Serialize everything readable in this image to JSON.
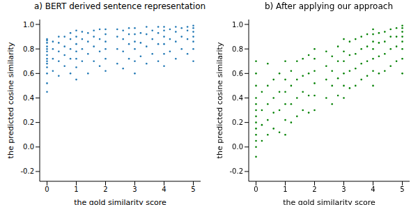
{
  "chart_data": [
    {
      "type": "scatter",
      "title": "a) BERT derived sentence representation",
      "x_label": "the gold similarity score",
      "y_label": "the predicted cosine similarity",
      "color": "#1f77b4",
      "xlim": [
        -0.25,
        5.25
      ],
      "ylim": [
        -0.28,
        1.04
      ],
      "xticks": [
        0,
        1,
        2,
        3,
        4,
        5
      ],
      "yticks": [
        -0.2,
        {
          "value": 0,
          "label": "0.0"
        },
        0.2,
        0.4,
        0.6,
        0.8,
        {
          "value": 1,
          "label": "1.0"
        }
      ],
      "x": [
        0,
        0,
        0,
        0,
        0,
        0,
        0,
        0,
        0,
        0,
        0,
        0,
        0,
        0,
        0.2,
        0.2,
        0.2,
        0.2,
        0.4,
        0.4,
        0.4,
        0.4,
        0.4,
        0.6,
        0.6,
        0.6,
        0.6,
        0.8,
        0.8,
        0.8,
        0.8,
        0.8,
        1,
        1,
        1,
        1,
        1,
        1,
        1,
        1.2,
        1.2,
        1.2,
        1.2,
        1.4,
        1.4,
        1.4,
        1.4,
        1.6,
        1.6,
        1.6,
        1.6,
        1.8,
        1.8,
        1.8,
        1.8,
        2,
        2,
        2,
        2,
        2,
        2,
        2.4,
        2.4,
        2.4,
        2.4,
        2.6,
        2.6,
        2.6,
        2.6,
        2.8,
        2.8,
        2.8,
        2.8,
        3,
        3,
        3,
        3,
        3,
        3,
        3.2,
        3.2,
        3.2,
        3.4,
        3.4,
        3.4,
        3.4,
        3.6,
        3.6,
        3.6,
        3.8,
        3.8,
        3.8,
        3.8,
        4,
        4,
        4,
        4,
        4,
        4,
        4.2,
        4.2,
        4.2,
        4.4,
        4.4,
        4.4,
        4.4,
        4.6,
        4.6,
        4.6,
        4.8,
        4.8,
        4.8,
        4.8,
        5,
        5,
        5,
        5,
        5,
        5,
        5
      ],
      "values": [
        0.45,
        0.52,
        0.6,
        0.65,
        0.68,
        0.7,
        0.72,
        0.75,
        0.78,
        0.8,
        0.82,
        0.85,
        0.87,
        0.88,
        0.62,
        0.72,
        0.8,
        0.86,
        0.58,
        0.7,
        0.78,
        0.85,
        0.9,
        0.66,
        0.75,
        0.82,
        0.9,
        0.6,
        0.72,
        0.8,
        0.88,
        0.93,
        0.55,
        0.65,
        0.72,
        0.78,
        0.84,
        0.9,
        0.95,
        0.7,
        0.8,
        0.88,
        0.94,
        0.6,
        0.76,
        0.86,
        0.93,
        0.7,
        0.82,
        0.9,
        0.95,
        0.66,
        0.78,
        0.88,
        0.96,
        0.62,
        0.72,
        0.8,
        0.86,
        0.92,
        0.96,
        0.68,
        0.8,
        0.9,
        0.96,
        0.64,
        0.78,
        0.88,
        0.95,
        0.72,
        0.84,
        0.92,
        0.97,
        0.6,
        0.7,
        0.8,
        0.86,
        0.92,
        0.97,
        0.74,
        0.85,
        0.93,
        0.68,
        0.82,
        0.92,
        0.98,
        0.76,
        0.88,
        0.95,
        0.7,
        0.84,
        0.93,
        0.98,
        0.66,
        0.76,
        0.84,
        0.9,
        0.95,
        0.98,
        0.78,
        0.88,
        0.96,
        0.72,
        0.86,
        0.94,
        0.98,
        0.8,
        0.9,
        0.97,
        0.76,
        0.88,
        0.95,
        0.98,
        0.7,
        0.8,
        0.86,
        0.9,
        0.94,
        0.97,
        0.99
      ]
    },
    {
      "type": "scatter",
      "title": "b) After applying our approach",
      "x_label": "the gold similarity score",
      "y_label": "the predicted cosine similarity",
      "color": "#008000",
      "xlim": [
        -0.25,
        5.25
      ],
      "ylim": [
        -0.28,
        1.04
      ],
      "xticks": [
        0,
        1,
        2,
        3,
        4,
        5
      ],
      "yticks": [
        -0.2,
        {
          "value": 0,
          "label": "0.0"
        },
        0.2,
        0.4,
        0.6,
        0.8,
        {
          "value": 1,
          "label": "1.0"
        }
      ],
      "x": [
        0,
        0,
        0,
        0,
        0,
        0,
        0,
        0,
        0,
        0,
        0,
        0,
        0,
        0.2,
        0.2,
        0.2,
        0.2,
        0.4,
        0.4,
        0.4,
        0.4,
        0.4,
        0.6,
        0.6,
        0.6,
        0.6,
        0.8,
        0.8,
        0.8,
        0.8,
        1,
        1,
        1,
        1,
        1,
        1,
        1.2,
        1.2,
        1.2,
        1.2,
        1.4,
        1.4,
        1.4,
        1.4,
        1.6,
        1.6,
        1.6,
        1.6,
        1.8,
        1.8,
        1.8,
        1.8,
        2,
        2,
        2,
        2,
        2,
        2,
        2.4,
        2.4,
        2.4,
        2.4,
        2.6,
        2.6,
        2.6,
        2.6,
        2.8,
        2.8,
        2.8,
        2.8,
        3,
        3,
        3,
        3,
        3,
        3,
        3.2,
        3.2,
        3.2,
        3.2,
        3.4,
        3.4,
        3.4,
        3.4,
        3.6,
        3.6,
        3.6,
        3.6,
        3.8,
        3.8,
        3.8,
        3.8,
        4,
        4,
        4,
        4,
        4,
        4,
        4,
        4.2,
        4.2,
        4.2,
        4.2,
        4.4,
        4.4,
        4.4,
        4.4,
        4.6,
        4.6,
        4.6,
        4.6,
        4.8,
        4.8,
        4.8,
        4.8,
        5,
        5,
        5,
        5,
        5,
        5,
        5,
        5
      ],
      "values": [
        -0.08,
        0,
        0.05,
        0.1,
        0.15,
        0.2,
        0.25,
        0.3,
        0.35,
        0.4,
        0.5,
        0.6,
        0.7,
        0.05,
        0.18,
        0.3,
        0.45,
        0.1,
        0.22,
        0.35,
        0.5,
        0.68,
        0.15,
        0.28,
        0.4,
        0.55,
        0.12,
        0.3,
        0.45,
        0.6,
        0.1,
        0.22,
        0.35,
        0.45,
        0.55,
        0.7,
        0.2,
        0.35,
        0.5,
        0.62,
        0.25,
        0.4,
        0.55,
        0.7,
        0.3,
        0.45,
        0.58,
        0.72,
        0.28,
        0.42,
        0.6,
        0.75,
        0.3,
        0.42,
        0.52,
        0.62,
        0.72,
        0.8,
        0.4,
        0.55,
        0.66,
        0.78,
        0.35,
        0.5,
        0.62,
        0.74,
        0.42,
        0.56,
        0.7,
        0.82,
        0.4,
        0.5,
        0.6,
        0.7,
        0.78,
        0.88,
        0.48,
        0.62,
        0.75,
        0.86,
        0.5,
        0.64,
        0.76,
        0.88,
        0.55,
        0.68,
        0.8,
        0.9,
        0.58,
        0.7,
        0.82,
        0.92,
        0.5,
        0.62,
        0.72,
        0.8,
        0.86,
        0.92,
        0.96,
        0.6,
        0.74,
        0.85,
        0.93,
        0.62,
        0.76,
        0.86,
        0.94,
        0.66,
        0.8,
        0.9,
        0.96,
        0.7,
        0.82,
        0.9,
        0.97,
        0.6,
        0.72,
        0.8,
        0.86,
        0.9,
        0.94,
        0.97,
        0.99
      ]
    }
  ]
}
